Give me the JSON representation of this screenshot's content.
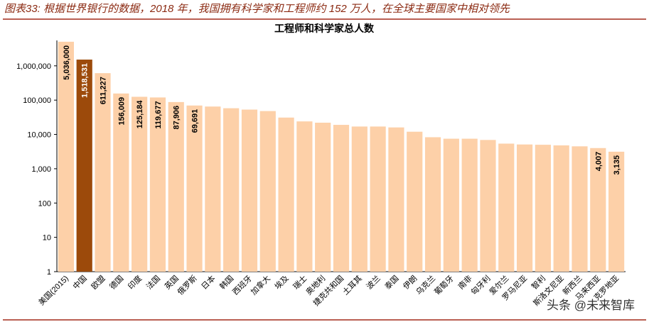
{
  "header": "图表33: 根据世界银行的数据，2018 年，我国拥有科学家和工程师约 152 万人，在全球主要国家中相对领先",
  "watermark": "头条 @未来智库",
  "chart_data": {
    "type": "bar",
    "title": "工程师和科学家总人数",
    "log_scale": true,
    "categories": [
      "美国(2015)",
      "中国",
      "欧盟",
      "德国",
      "印度",
      "法国",
      "英国",
      "俄罗斯",
      "日本",
      "韩国",
      "西班牙",
      "加拿大",
      "埃及",
      "瑞士",
      "奥地利",
      "捷克共和国",
      "土耳其",
      "波兰",
      "泰国",
      "伊朗",
      "乌克兰",
      "葡萄牙",
      "南非",
      "匈牙利",
      "爱尔兰",
      "罗马尼亚",
      "智利",
      "斯洛文尼亚",
      "新西兰",
      "马来西亚",
      "克罗地亚"
    ],
    "values": [
      5036000,
      1518531,
      611227,
      156009,
      125184,
      119677,
      87906,
      69691,
      65000,
      58000,
      53000,
      48000,
      31000,
      24000,
      22000,
      19000,
      17000,
      17000,
      16000,
      12000,
      8300,
      7500,
      7500,
      6900,
      5400,
      5100,
      5000,
      4800,
      4500,
      4007,
      3135
    ],
    "value_labels": [
      "5,036,000",
      "1,518,531",
      "611,227",
      "156,009",
      "125,184",
      "119,677",
      "87,906",
      "69,691",
      null,
      null,
      null,
      null,
      null,
      null,
      null,
      null,
      null,
      null,
      null,
      null,
      null,
      null,
      null,
      null,
      null,
      null,
      null,
      null,
      null,
      "4,007",
      "3,135"
    ],
    "colors": [
      "#fdd0a8",
      "#9c4a0b",
      "#fdd0a8",
      "#fdd0a8",
      "#fdd0a8",
      "#fdd0a8",
      "#fdd0a8",
      "#fdd0a8",
      "#fdd0a8",
      "#fdd0a8",
      "#fdd0a8",
      "#fdd0a8",
      "#fdd0a8",
      "#fdd0a8",
      "#fdd0a8",
      "#fdd0a8",
      "#fdd0a8",
      "#fdd0a8",
      "#fdd0a8",
      "#fdd0a8",
      "#fdd0a8",
      "#fdd0a8",
      "#fdd0a8",
      "#fdd0a8",
      "#fdd0a8",
      "#fdd0a8",
      "#fdd0a8",
      "#fdd0a8",
      "#fdd0a8",
      "#fdd0a8",
      "#fdd0a8"
    ],
    "ylim": [
      1,
      5500000
    ],
    "yticks": [
      1,
      10,
      100,
      {
        "value": 1000,
        "label": "1,000"
      },
      {
        "value": 10000,
        "label": "10,000"
      },
      {
        "value": 100000,
        "label": "100,000"
      },
      {
        "value": 1000000,
        "label": "1,000,000"
      }
    ]
  }
}
